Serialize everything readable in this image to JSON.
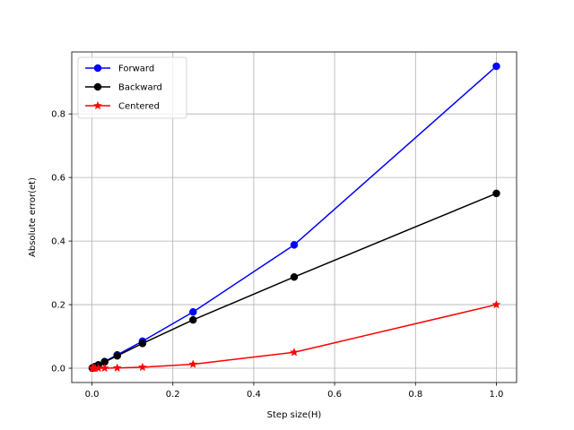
{
  "chart_data": {
    "type": "line",
    "xlabel": "Step size(H)",
    "ylabel": "Absolute error(et)",
    "xlim": [
      -0.05,
      1.05
    ],
    "ylim": [
      -0.045,
      0.995
    ],
    "xticks": [
      0.0,
      0.2,
      0.4,
      0.6,
      0.8,
      1.0
    ],
    "xtick_labels": [
      "0.0",
      "0.2",
      "0.4",
      "0.6",
      "0.8",
      "1.0"
    ],
    "yticks": [
      0.0,
      0.2,
      0.4,
      0.6,
      0.8
    ],
    "ytick_labels": [
      "0.0",
      "0.2",
      "0.4",
      "0.6",
      "0.8"
    ],
    "grid": true,
    "legend_position": "top-left",
    "x": [
      1.0,
      0.5,
      0.25,
      0.125,
      0.0625,
      0.03125,
      0.015625,
      0.0078125,
      0.00390625,
      0.001953125,
      0.0009765625
    ],
    "series": [
      {
        "name": "Forward",
        "color": "#0000ff",
        "marker": "circle",
        "values": [
          0.95,
          0.388,
          0.177,
          0.085,
          0.042,
          0.021,
          0.0105,
          0.0052,
          0.0026,
          0.0013,
          0.00065
        ]
      },
      {
        "name": "Backward",
        "color": "#000000",
        "marker": "circle",
        "values": [
          0.55,
          0.287,
          0.152,
          0.078,
          0.039,
          0.0195,
          0.0098,
          0.0049,
          0.0024,
          0.0012,
          0.0006
        ]
      },
      {
        "name": "Centered",
        "color": "#ff0000",
        "marker": "star",
        "values": [
          0.2,
          0.05,
          0.0125,
          0.0031,
          0.0008,
          0.0002,
          5e-05,
          1e-05,
          3e-06,
          1e-06,
          2e-07
        ]
      }
    ]
  }
}
